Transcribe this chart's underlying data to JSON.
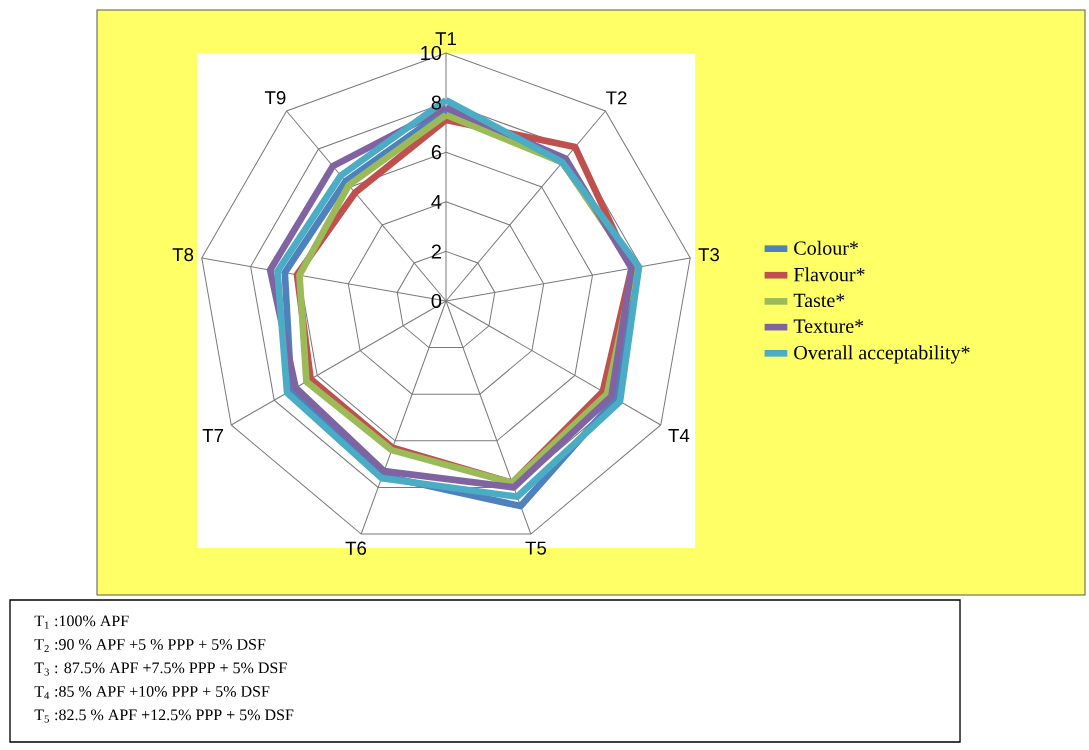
{
  "chart_data": {
    "type": "radar",
    "categories": [
      "T1",
      "T2",
      "T3",
      "T4",
      "T5",
      "T6",
      "T7",
      "T8",
      "T9"
    ],
    "series": [
      {
        "name": "Colour*",
        "color": "#4f81bd",
        "values": [
          7.7,
          7.3,
          7.8,
          7.9,
          8.8,
          7.5,
          7.2,
          6.6,
          6.3
        ]
      },
      {
        "name": "Flavour*",
        "color": "#c0504d",
        "values": [
          7.3,
          8.1,
          7.6,
          7.3,
          7.8,
          6.3,
          6.3,
          6.1,
          5.7
        ]
      },
      {
        "name": "Taste*",
        "color": "#9bbb59",
        "values": [
          7.5,
          7.3,
          7.7,
          7.5,
          7.8,
          6.4,
          6.5,
          6.0,
          6.1
        ]
      },
      {
        "name": "Texture*",
        "color": "#8064a2",
        "values": [
          7.8,
          7.5,
          7.6,
          7.7,
          8.0,
          7.3,
          7.0,
          7.2,
          7.1
        ]
      },
      {
        "name": "Overall acceptability*",
        "color": "#4bacc6",
        "values": [
          8.1,
          7.3,
          7.9,
          8.1,
          8.4,
          7.6,
          7.4,
          6.9,
          6.6
        ]
      }
    ],
    "ylim": [
      0,
      10
    ],
    "yticks": [
      0,
      2,
      4,
      6,
      8,
      10
    ],
    "grid": true,
    "legend": "right",
    "annotations": [
      "T$_{1}$ :100% APF",
      "T$_{2}$ :90 % APF +5 %  PPP + 5% DSF",
      "T$_{3}$ : 87.5% APF +7.5% PPP + 5% DSF",
      "T$_{4}$ :85 %  APF +10%  PPP + 5% DSF",
      "T$_{5}$ :82.5 % APF +12.5%  PPP + 5% DSF"
    ]
  }
}
